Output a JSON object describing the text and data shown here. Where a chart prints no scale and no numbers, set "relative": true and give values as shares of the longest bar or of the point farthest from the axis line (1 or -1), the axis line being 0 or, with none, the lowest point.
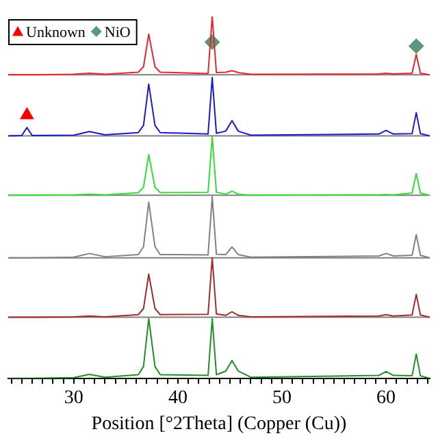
{
  "chart_data": {
    "type": "line",
    "relative": true,
    "xlabel": "Position [°2Theta] (Copper (Cu))",
    "xlim": [
      23.7,
      64.2
    ],
    "xticks": [
      {
        "value": 24,
        "label": null
      },
      {
        "value": 25,
        "label": null
      },
      {
        "value": 26,
        "label": null
      },
      {
        "value": 27,
        "label": null
      },
      {
        "value": 28,
        "label": null
      },
      {
        "value": 29,
        "label": null
      },
      30,
      {
        "value": 31,
        "label": null
      },
      {
        "value": 32,
        "label": null
      },
      {
        "value": 33,
        "label": null
      },
      {
        "value": 34,
        "label": null
      },
      {
        "value": 35,
        "label": null
      },
      {
        "value": 36,
        "label": null
      },
      {
        "value": 37,
        "label": null
      },
      {
        "value": 38,
        "label": null
      },
      {
        "value": 39,
        "label": null
      },
      40,
      {
        "value": 41,
        "label": null
      },
      {
        "value": 42,
        "label": null
      },
      {
        "value": 43,
        "label": null
      },
      {
        "value": 44,
        "label": null
      },
      {
        "value": 45,
        "label": null
      },
      {
        "value": 46,
        "label": null
      },
      {
        "value": 47,
        "label": null
      },
      {
        "value": 48,
        "label": null
      },
      {
        "value": 49,
        "label": null
      },
      50,
      {
        "value": 51,
        "label": null
      },
      {
        "value": 52,
        "label": null
      },
      {
        "value": 53,
        "label": null
      },
      {
        "value": 54,
        "label": null
      },
      {
        "value": 55,
        "label": null
      },
      {
        "value": 56,
        "label": null
      },
      {
        "value": 57,
        "label": null
      },
      {
        "value": 58,
        "label": null
      },
      {
        "value": 59,
        "label": null
      },
      60,
      {
        "value": 61,
        "label": null
      },
      {
        "value": 62,
        "label": null
      },
      {
        "value": 63,
        "label": null
      },
      {
        "value": 64,
        "label": null
      }
    ],
    "x": [
      23.7,
      25.0,
      25.5,
      26.0,
      30.0,
      31.5,
      33.0,
      36.2,
      36.7,
      37.2,
      37.8,
      38.3,
      42.9,
      43.3,
      43.7,
      44.6,
      45.2,
      45.8,
      47,
      59.3,
      60.0,
      60.7,
      62.5,
      62.9,
      63.3,
      64.2
    ],
    "legend": "top left",
    "grid": false,
    "ref_lines": [
      {
        "axis": "y",
        "value": 0.839,
        "color": "#808080"
      },
      {
        "axis": "y",
        "value": 0.67,
        "color": "#808080"
      },
      {
        "axis": "y",
        "value": 0.506,
        "color": "#808080"
      },
      {
        "axis": "y",
        "value": 0.333,
        "color": "#808080"
      },
      {
        "axis": "y",
        "value": 0.169,
        "color": "#808080"
      }
    ],
    "series": [
      {
        "color": "#e8262a",
        "values": [
          0.839,
          0.839,
          0.839,
          0.839,
          0.84,
          0.843,
          0.84,
          0.846,
          0.861,
          0.951,
          0.861,
          0.846,
          0.842,
          1.0,
          0.845,
          0.846,
          0.85,
          0.845,
          0.84,
          0.841,
          0.843,
          0.841,
          0.843,
          0.895,
          0.843,
          0.839
        ]
      },
      {
        "color": "#1a1acc",
        "values": [
          0.67,
          0.671,
          0.693,
          0.671,
          0.672,
          0.682,
          0.673,
          0.679,
          0.699,
          0.813,
          0.699,
          0.679,
          0.675,
          0.831,
          0.677,
          0.683,
          0.712,
          0.683,
          0.672,
          0.675,
          0.685,
          0.675,
          0.676,
          0.734,
          0.676,
          0.67
        ]
      },
      {
        "color": "#33dd33",
        "values": [
          0.506,
          0.506,
          0.506,
          0.506,
          0.507,
          0.509,
          0.507,
          0.513,
          0.528,
          0.618,
          0.528,
          0.513,
          0.514,
          0.667,
          0.514,
          0.509,
          0.517,
          0.509,
          0.506,
          0.507,
          0.508,
          0.507,
          0.512,
          0.566,
          0.512,
          0.506
        ]
      },
      {
        "color": "#808080",
        "values": [
          0.333,
          0.333,
          0.333,
          0.333,
          0.335,
          0.345,
          0.336,
          0.342,
          0.364,
          0.487,
          0.364,
          0.342,
          0.341,
          0.502,
          0.343,
          0.342,
          0.363,
          0.342,
          0.335,
          0.338,
          0.345,
          0.338,
          0.34,
          0.397,
          0.34,
          0.333
        ]
      },
      {
        "color": "#a52a2a",
        "values": [
          0.169,
          0.169,
          0.169,
          0.169,
          0.17,
          0.172,
          0.17,
          0.176,
          0.193,
          0.288,
          0.193,
          0.176,
          0.177,
          0.333,
          0.178,
          0.174,
          0.184,
          0.174,
          0.17,
          0.172,
          0.176,
          0.172,
          0.175,
          0.232,
          0.175,
          0.169
        ]
      },
      {
        "color": "#1f8f1f",
        "values": [
          0,
          0,
          0,
          0,
          0.002,
          0.011,
          0.003,
          0.01,
          0.033,
          0.165,
          0.033,
          0.01,
          0.008,
          0.165,
          0.01,
          0.02,
          0.049,
          0.02,
          0.003,
          0.008,
          0.019,
          0.008,
          0.007,
          0.067,
          0.007,
          0
        ]
      },
      {
        "type": "scatter",
        "name": "Unknown",
        "marker": "triangle",
        "color": "#ff0000",
        "x": [
          25.5
        ],
        "values": [
          0.727
        ]
      },
      {
        "type": "scatter",
        "name": "NiO",
        "marker": "diamond",
        "color": "#5a9a78",
        "x": [
          43.3,
          62.9
        ],
        "values": [
          0.929,
          0.918
        ]
      }
    ]
  }
}
